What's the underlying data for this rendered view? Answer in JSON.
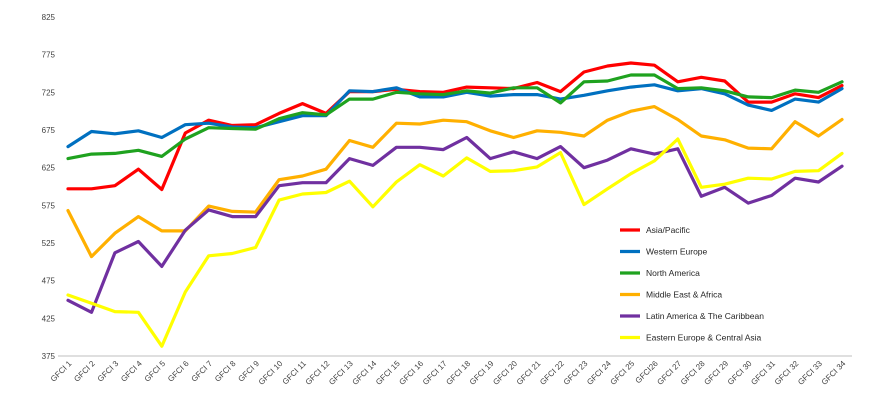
{
  "chart_data": {
    "type": "line",
    "title": "",
    "xlabel": "",
    "ylabel": "",
    "ylim": [
      375,
      825
    ],
    "yticks": [
      375,
      425,
      475,
      525,
      575,
      625,
      675,
      725,
      775,
      825
    ],
    "grid": false,
    "legend_placement": "right",
    "categories": [
      "GFCI 1",
      "GFCI 2",
      "GFCI 3",
      "GFCI 4",
      "GFCI 5",
      "GFCI 6",
      "GFCI 7",
      "GFCI 8",
      "GFCI 9",
      "GFCI 10",
      "GFCI 11",
      "GFCI 12",
      "GFCI 13",
      "GFCI 14",
      "GFCI 15",
      "GFCI 16",
      "GFCI 17",
      "GFCI 18",
      "GFCI 19",
      "GFCI 20",
      "GFCI 21",
      "GFCI 22",
      "GFCI 23",
      "GFCI 24",
      "GFCI 25",
      "GFCI26",
      "GFCI 27",
      "GFCI 28",
      "GFCI 29",
      "GFCI 30",
      "GFCI 31",
      "GFCI 32",
      "GFCI 33",
      "GFCI 34"
    ],
    "series": [
      {
        "name": "Asia/Pacific",
        "color": "#ff0000",
        "values": [
          597,
          597,
          601,
          623,
          596,
          671,
          688,
          681,
          682,
          697,
          710,
          697,
          726,
          726,
          729,
          726,
          725,
          732,
          731,
          730,
          738,
          726,
          752,
          760,
          764,
          761,
          739,
          745,
          740,
          712,
          712,
          723,
          718,
          734
        ]
      },
      {
        "name": "Western Europe",
        "color": "#0070c0",
        "values": [
          653,
          673,
          670,
          674,
          665,
          682,
          684,
          679,
          678,
          686,
          694,
          694,
          727,
          726,
          731,
          719,
          719,
          725,
          720,
          722,
          722,
          716,
          721,
          727,
          732,
          735,
          727,
          730,
          723,
          708,
          701,
          716,
          712,
          730
        ]
      },
      {
        "name": "North America",
        "color": "#1fa21f",
        "values": [
          637,
          643,
          644,
          648,
          640,
          663,
          678,
          677,
          676,
          690,
          698,
          695,
          716,
          716,
          725,
          723,
          722,
          727,
          724,
          731,
          731,
          711,
          739,
          740,
          748,
          748,
          730,
          731,
          727,
          719,
          718,
          728,
          725,
          739
        ]
      },
      {
        "name": "Middle East & Africa",
        "color": "#ffb000",
        "values": [
          568,
          507,
          538,
          560,
          541,
          541,
          574,
          567,
          566,
          609,
          614,
          623,
          661,
          652,
          684,
          683,
          688,
          686,
          674,
          665,
          674,
          672,
          667,
          688,
          700,
          706,
          689,
          667,
          662,
          651,
          650,
          686,
          667,
          689
        ]
      },
      {
        "name": "Latin America & The Caribbean",
        "color": "#7030a0",
        "values": [
          449,
          433,
          512,
          527,
          494,
          542,
          569,
          560,
          560,
          601,
          605,
          605,
          637,
          628,
          652,
          652,
          649,
          665,
          637,
          646,
          637,
          653,
          625,
          635,
          650,
          643,
          650,
          587,
          599,
          578,
          588,
          611,
          606,
          627
        ]
      },
      {
        "name": "Eastern Europe & Central Asia",
        "color": "#ffff00",
        "values": [
          456,
          445,
          434,
          433,
          388,
          460,
          508,
          511,
          519,
          582,
          590,
          592,
          607,
          573,
          606,
          629,
          614,
          638,
          620,
          621,
          626,
          645,
          576,
          597,
          617,
          634,
          663,
          599,
          603,
          611,
          610,
          620,
          621,
          644
        ]
      }
    ]
  }
}
